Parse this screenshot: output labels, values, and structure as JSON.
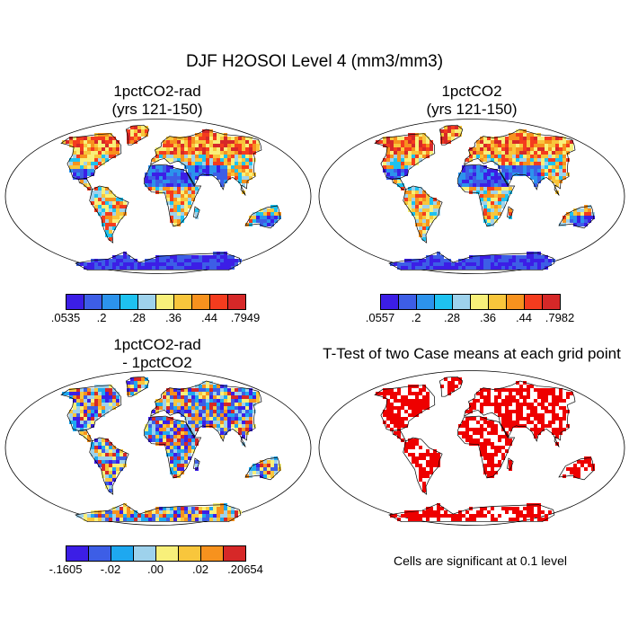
{
  "figure_title": "DJF H2OSOI Level 4 (mm3/mm3)",
  "panels": [
    {
      "title_line1": "1pctCO2-rad",
      "title_line2": "(yrs 121-150)"
    },
    {
      "title_line1": "1pctCO2",
      "title_line2": "(yrs 121-150)"
    },
    {
      "title_line1": "1pctCO2-rad",
      "title_line2": "- 1pctCO2"
    },
    {
      "title_line1": "T-Test of two Case means at each grid point",
      "title_line2": ""
    }
  ],
  "colorbars": [
    {
      "colors": [
        "#3c1ee6",
        "#3d5ee6",
        "#2c93ec",
        "#1ec2f0",
        "#9ed2ec",
        "#f8f07a",
        "#f8c63c",
        "#f7921e",
        "#f43c1e",
        "#d62828"
      ],
      "labels": [
        ".0535",
        ".2",
        ".28",
        ".36",
        ".44",
        ".7949"
      ]
    },
    {
      "colors": [
        "#3c1ee6",
        "#3d5ee6",
        "#2c93ec",
        "#1ec2f0",
        "#9ed2ec",
        "#f8f07a",
        "#f8c63c",
        "#f7921e",
        "#f43c1e",
        "#d62828"
      ],
      "labels": [
        ".0557",
        ".2",
        ".28",
        ".36",
        ".44",
        ".7982"
      ]
    },
    {
      "colors": [
        "#3c1ee6",
        "#3d5ee6",
        "#1ea8f0",
        "#9ed2ec",
        "#f8f07a",
        "#f8c63c",
        "#f7921e",
        "#d62828"
      ],
      "labels": [
        "-.1605",
        "-.02",
        ".00",
        ".02",
        ".20654"
      ]
    }
  ],
  "significance_note": "Cells are significant at 0.1 level",
  "significance_color": "#ee0000"
}
